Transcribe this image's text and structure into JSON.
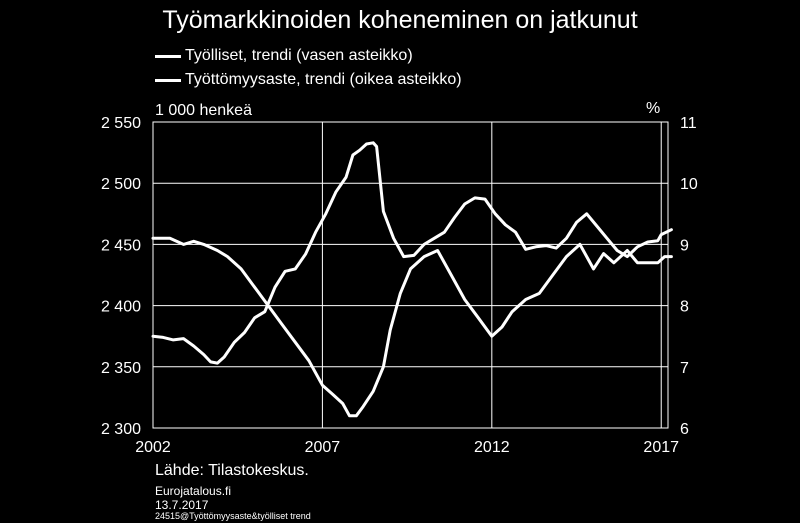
{
  "chart_data": {
    "type": "line",
    "title": "Työmarkkinoiden koheneminen on jatkunut",
    "left_axis_unit": "1 000 henkeä",
    "right_axis_unit": "%",
    "left_ylim": [
      2300,
      2550
    ],
    "left_ticks": [
      "2 300",
      "2 350",
      "2 400",
      "2 450",
      "2 500",
      "2 550"
    ],
    "left_tick_values": [
      2300,
      2350,
      2400,
      2450,
      2500,
      2550
    ],
    "right_ylim": [
      6,
      11
    ],
    "right_ticks": [
      "6",
      "7",
      "8",
      "9",
      "10",
      "11"
    ],
    "right_tick_values": [
      6,
      7,
      8,
      9,
      10,
      11
    ],
    "xlim": [
      2002,
      2017.2
    ],
    "x_ticks": [
      "2002",
      "2007",
      "2012",
      "2017"
    ],
    "x_tick_values": [
      2002,
      2007,
      2012,
      2017
    ],
    "grid": true,
    "series": [
      {
        "name": "Työlliset, trendi (vasen asteikko)",
        "axis": "left",
        "color": "#ffffff",
        "x": [
          2002.0,
          2002.3,
          2002.6,
          2002.9,
          2003.2,
          2003.5,
          2003.7,
          2003.9,
          2004.1,
          2004.4,
          2004.7,
          2005.0,
          2005.3,
          2005.6,
          2005.9,
          2006.2,
          2006.5,
          2006.8,
          2007.1,
          2007.4,
          2007.7,
          2007.9,
          2008.1,
          2008.3,
          2008.5,
          2008.6,
          2008.8,
          2009.1,
          2009.4,
          2009.7,
          2010.0,
          2010.3,
          2010.6,
          2010.9,
          2011.2,
          2011.5,
          2011.8,
          2012.1,
          2012.4,
          2012.7,
          2013.0,
          2013.3,
          2013.6,
          2013.9,
          2014.2,
          2014.5,
          2014.8,
          2015.1,
          2015.4,
          2015.7,
          2016.0,
          2016.3,
          2016.6,
          2016.9,
          2017.0,
          2017.3
        ],
        "values": [
          2375,
          2374,
          2372,
          2373,
          2367,
          2360,
          2354,
          2353,
          2358,
          2370,
          2378,
          2390,
          2395,
          2415,
          2428,
          2430,
          2442,
          2460,
          2475,
          2493,
          2505,
          2523,
          2527,
          2532,
          2533,
          2530,
          2477,
          2455,
          2440,
          2441,
          2450,
          2455,
          2460,
          2472,
          2483,
          2488,
          2487,
          2475,
          2466,
          2460,
          2446,
          2448,
          2449,
          2447,
          2455,
          2468,
          2475,
          2465,
          2455,
          2445,
          2440,
          2448,
          2452,
          2453,
          2458,
          2462
        ]
      },
      {
        "name": "Työttömyysaste, trendi (oikea asteikko)",
        "axis": "right",
        "color": "#ffffff",
        "x": [
          2002.0,
          2002.5,
          2002.9,
          2003.2,
          2003.5,
          2003.9,
          2004.2,
          2004.6,
          2005.0,
          2005.4,
          2005.8,
          2006.2,
          2006.6,
          2007.0,
          2007.3,
          2007.6,
          2007.8,
          2008.0,
          2008.2,
          2008.5,
          2008.8,
          2009.0,
          2009.3,
          2009.6,
          2010.0,
          2010.4,
          2010.8,
          2011.2,
          2011.6,
          2012.0,
          2012.3,
          2012.6,
          2013.0,
          2013.4,
          2013.8,
          2014.2,
          2014.6,
          2014.8,
          2015.0,
          2015.3,
          2015.6,
          2016.0,
          2016.3,
          2016.6,
          2016.9,
          2017.1,
          2017.3
        ],
        "values": [
          9.1,
          9.1,
          9.0,
          9.05,
          9.0,
          8.9,
          8.8,
          8.6,
          8.3,
          8.0,
          7.7,
          7.4,
          7.1,
          6.7,
          6.55,
          6.4,
          6.2,
          6.2,
          6.35,
          6.6,
          7.0,
          7.6,
          8.2,
          8.6,
          8.8,
          8.9,
          8.5,
          8.1,
          7.8,
          7.5,
          7.65,
          7.9,
          8.1,
          8.2,
          8.5,
          8.8,
          9.0,
          8.8,
          8.6,
          8.85,
          8.7,
          8.9,
          8.7,
          8.7,
          8.7,
          8.8,
          8.8
        ]
      }
    ]
  },
  "footer": {
    "source": "Lähde: Tilastokeskus.",
    "site": "Eurojatalous.fi",
    "date": "13.7.2017",
    "code": "24515@Työttömyysaste&työlliset trend"
  }
}
